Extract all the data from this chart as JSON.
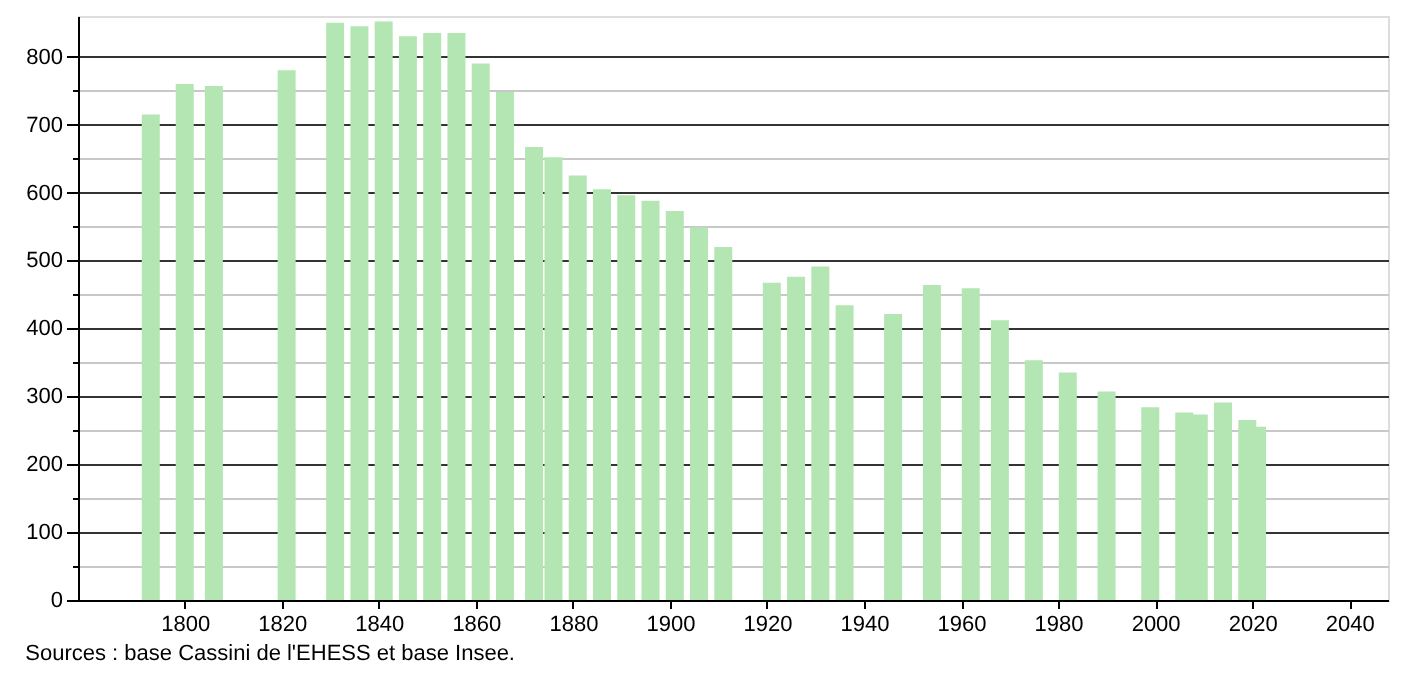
{
  "chart_data": {
    "type": "bar",
    "x": [
      1793,
      1800,
      1806,
      1821,
      1831,
      1836,
      1841,
      1846,
      1851,
      1856,
      1861,
      1866,
      1872,
      1876,
      1881,
      1886,
      1891,
      1896,
      1901,
      1906,
      1911,
      1921,
      1926,
      1931,
      1936,
      1946,
      1954,
      1962,
      1968,
      1975,
      1982,
      1990,
      1999,
      2006,
      2009,
      2014,
      2019,
      2021
    ],
    "values": [
      715,
      760,
      757,
      780,
      850,
      845,
      852,
      830,
      835,
      835,
      790,
      748,
      667,
      652,
      625,
      605,
      596,
      588,
      573,
      549,
      520,
      467,
      476,
      491,
      434,
      421,
      464,
      459,
      412,
      353,
      335,
      307,
      284,
      276,
      273,
      291,
      265,
      255
    ],
    "color": "#b3e6b3",
    "xlim": [
      1778,
      2048
    ],
    "xticks": [
      1800,
      1820,
      1840,
      1860,
      1880,
      1900,
      1920,
      1940,
      1960,
      1980,
      2000,
      2020,
      2040
    ],
    "ylim": [
      0,
      860
    ],
    "yticks": [
      0,
      {
        "value": 50,
        "label": null
      },
      100,
      {
        "value": 150,
        "label": null
      },
      200,
      {
        "value": 250,
        "label": null
      },
      300,
      {
        "value": 350,
        "label": null
      },
      400,
      {
        "value": 450,
        "label": null
      },
      500,
      {
        "value": 550,
        "label": null
      },
      600,
      {
        "value": 650,
        "label": null
      },
      700,
      {
        "value": 750,
        "label": null
      },
      800
    ],
    "grid": "y",
    "annotations": [
      "Sources : base Cassini de l'EHESS et base Insee."
    ]
  }
}
